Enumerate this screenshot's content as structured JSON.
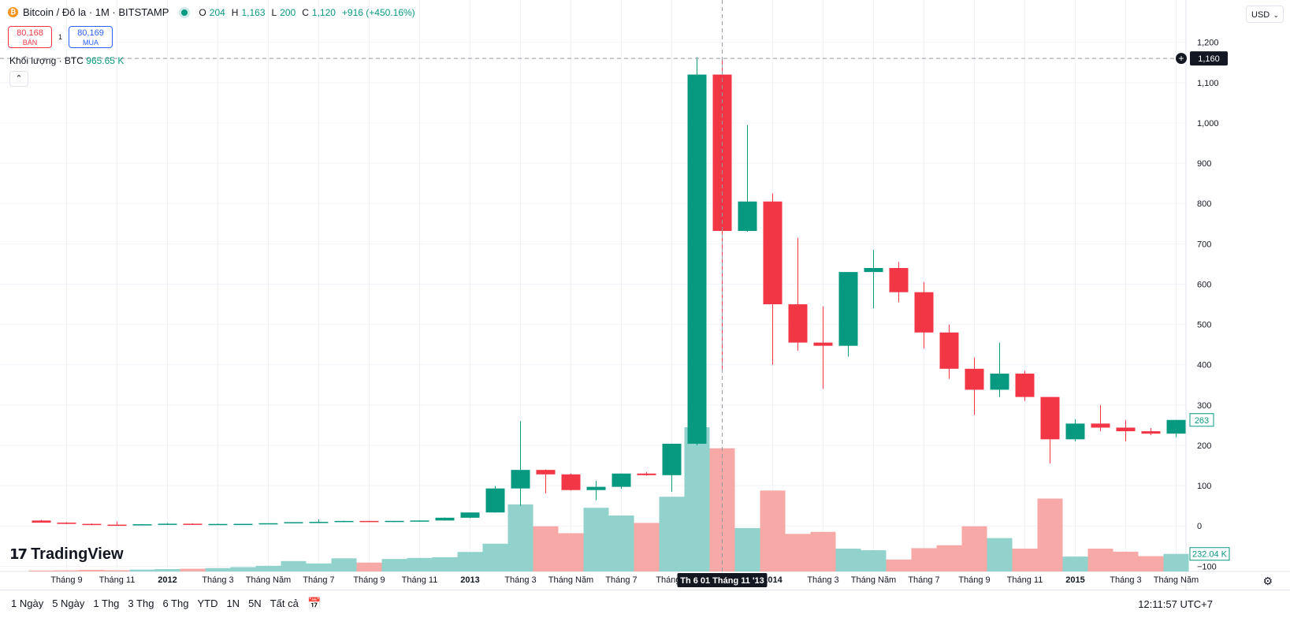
{
  "header": {
    "coin_icon": "bitcoin-icon",
    "symbol": "Bitcoin / Đô la · 1M · BITSTAMP",
    "ohlc": {
      "o_key": "O",
      "o": "204",
      "h_key": "H",
      "h": "1,163",
      "l_key": "L",
      "l": "200",
      "c_key": "C",
      "c": "1,120",
      "change": "+916 (+450.16%)"
    }
  },
  "quote": {
    "sell_price": "80,168",
    "sell_label": "BÁN",
    "spread": "1",
    "buy_price": "80,169",
    "buy_label": "MUA"
  },
  "volume_legend": {
    "label": "Khối lượng · BTC",
    "value": "965.65 K"
  },
  "collapse_icon": "chevron-up-icon",
  "currency": "USD",
  "brand": {
    "logo_text": "TradingView"
  },
  "crosshair": {
    "price_label": "1,160",
    "date_label": "Th 6 01 Tháng 11 '13",
    "price": 1160
  },
  "last_price_label": "263",
  "last_volume_label": "232.04 K",
  "colors": {
    "up": "#089981",
    "down": "#f23645",
    "up_vol": "#92d2cc",
    "down_vol": "#f7a9a7"
  },
  "time_ranges": [
    "1 Ngày",
    "5 Ngày",
    "1 Thg",
    "3 Thg",
    "6 Thg",
    "YTD",
    "1N",
    "5N",
    "Tất cả"
  ],
  "clock": "12:11:57 UTC+7",
  "chart_data": {
    "type": "candlestick",
    "y_ticks": [
      "1,200",
      "1,100",
      "1,000",
      "900",
      "800",
      "700",
      "600",
      "500",
      "400",
      "300",
      "200",
      "100",
      "0",
      "−100"
    ],
    "y_tick_values": [
      1200,
      1100,
      1000,
      900,
      800,
      700,
      600,
      500,
      400,
      300,
      200,
      100,
      0,
      -100
    ],
    "ylim": [
      -113,
      1305
    ],
    "x_ticks": [
      {
        "index": 1,
        "label": "Tháng 9",
        "bold": false
      },
      {
        "index": 3,
        "label": "Tháng 11",
        "bold": false
      },
      {
        "index": 5,
        "label": "2012",
        "bold": true
      },
      {
        "index": 7,
        "label": "Tháng 3",
        "bold": false
      },
      {
        "index": 9,
        "label": "Tháng Năm",
        "bold": false
      },
      {
        "index": 11,
        "label": "Tháng 7",
        "bold": false
      },
      {
        "index": 13,
        "label": "Tháng 9",
        "bold": false
      },
      {
        "index": 15,
        "label": "Tháng 11",
        "bold": false
      },
      {
        "index": 17,
        "label": "2013",
        "bold": true
      },
      {
        "index": 19,
        "label": "Tháng 3",
        "bold": false
      },
      {
        "index": 21,
        "label": "Tháng Năm",
        "bold": false
      },
      {
        "index": 23,
        "label": "Tháng 7",
        "bold": false
      },
      {
        "index": 25,
        "label": "Tháng 9",
        "bold": false
      },
      {
        "index": 29,
        "label": "2014",
        "bold": true
      },
      {
        "index": 31,
        "label": "Tháng 3",
        "bold": false
      },
      {
        "index": 33,
        "label": "Tháng Năm",
        "bold": false
      },
      {
        "index": 35,
        "label": "Tháng 7",
        "bold": false
      },
      {
        "index": 37,
        "label": "Tháng 9",
        "bold": false
      },
      {
        "index": 39,
        "label": "Tháng 11",
        "bold": false
      },
      {
        "index": 41,
        "label": "2015",
        "bold": true
      },
      {
        "index": 43,
        "label": "Tháng 3",
        "bold": false
      },
      {
        "index": 45,
        "label": "Tháng Năm",
        "bold": false
      }
    ],
    "crosshair_index": 27,
    "candles": [
      {
        "o": 13.4,
        "h": 15,
        "l": 10,
        "c": 8.2
      },
      {
        "o": 8.2,
        "h": 9.5,
        "l": 4.5,
        "c": 5.1
      },
      {
        "o": 5.1,
        "h": 6,
        "l": 2,
        "c": 3.2
      },
      {
        "o": 3.2,
        "h": 11,
        "l": 2,
        "c": 2.9
      },
      {
        "o": 2.9,
        "h": 4.5,
        "l": 2.5,
        "c": 4.2
      },
      {
        "o": 4.2,
        "h": 7.2,
        "l": 4,
        "c": 5.5
      },
      {
        "o": 5.5,
        "h": 6.5,
        "l": 4.2,
        "c": 4.9
      },
      {
        "o": 4.9,
        "h": 5.9,
        "l": 4.4,
        "c": 4.9
      },
      {
        "o": 4.9,
        "h": 5.3,
        "l": 4.7,
        "c": 5.2
      },
      {
        "o": 5.2,
        "h": 5.8,
        "l": 5,
        "c": 6.7
      },
      {
        "o": 6.7,
        "h": 7.5,
        "l": 6.5,
        "c": 9.4
      },
      {
        "o": 9.4,
        "h": 16,
        "l": 7,
        "c": 10.1
      },
      {
        "o": 10.1,
        "h": 13,
        "l": 9.5,
        "c": 12.4
      },
      {
        "o": 12.4,
        "h": 12.8,
        "l": 9.8,
        "c": 11.2
      },
      {
        "o": 11.2,
        "h": 12,
        "l": 9.6,
        "c": 12.6
      },
      {
        "o": 12.6,
        "h": 14,
        "l": 12.5,
        "c": 13.5
      },
      {
        "o": 13.5,
        "h": 21,
        "l": 13.3,
        "c": 20.4
      },
      {
        "o": 20.4,
        "h": 33,
        "l": 19,
        "c": 33.4
      },
      {
        "o": 33.4,
        "h": 99,
        "l": 33,
        "c": 93
      },
      {
        "o": 93,
        "h": 260,
        "l": 50,
        "c": 139
      },
      {
        "o": 139,
        "h": 140,
        "l": 81,
        "c": 128
      },
      {
        "o": 128,
        "h": 130,
        "l": 88,
        "c": 89
      },
      {
        "o": 89,
        "h": 112,
        "l": 64,
        "c": 97
      },
      {
        "o": 97,
        "h": 130,
        "l": 92,
        "c": 130
      },
      {
        "o": 130,
        "h": 134,
        "l": 125,
        "c": 126
      },
      {
        "o": 126,
        "h": 204,
        "l": 85,
        "c": 204
      },
      {
        "o": 204,
        "h": 1163,
        "l": 200,
        "c": 1120
      },
      {
        "o": 1120,
        "h": 1163,
        "l": 380,
        "c": 732
      },
      {
        "o": 732,
        "h": 995,
        "l": 730,
        "c": 805
      },
      {
        "o": 805,
        "h": 825,
        "l": 400,
        "c": 550
      },
      {
        "o": 550,
        "h": 715,
        "l": 435,
        "c": 455
      },
      {
        "o": 455,
        "h": 545,
        "l": 340,
        "c": 447
      },
      {
        "o": 447,
        "h": 630,
        "l": 420,
        "c": 630
      },
      {
        "o": 630,
        "h": 685,
        "l": 540,
        "c": 640
      },
      {
        "o": 640,
        "h": 655,
        "l": 555,
        "c": 580
      },
      {
        "o": 580,
        "h": 605,
        "l": 440,
        "c": 480
      },
      {
        "o": 480,
        "h": 500,
        "l": 365,
        "c": 390
      },
      {
        "o": 390,
        "h": 418,
        "l": 275,
        "c": 338
      },
      {
        "o": 338,
        "h": 455,
        "l": 320,
        "c": 378
      },
      {
        "o": 378,
        "h": 385,
        "l": 310,
        "c": 320
      },
      {
        "o": 320,
        "h": 320,
        "l": 155,
        "c": 215
      },
      {
        "o": 215,
        "h": 265,
        "l": 210,
        "c": 254
      },
      {
        "o": 254,
        "h": 300,
        "l": 235,
        "c": 244
      },
      {
        "o": 244,
        "h": 263,
        "l": 210,
        "c": 235
      },
      {
        "o": 235,
        "h": 243,
        "l": 225,
        "c": 229
      },
      {
        "o": 229,
        "h": 263,
        "l": 220,
        "c": 263
      }
    ],
    "volume": [
      1.2,
      1.5,
      2.1,
      1.6,
      2.4,
      3.0,
      3.5,
      4.3,
      5.5,
      7.2,
      13.2,
      10.2,
      16.7,
      11.3,
      15.9,
      17.2,
      18.1,
      24.8,
      35.3,
      85.2,
      57.4,
      48.6,
      80.9,
      71.1,
      61.7,
      94.9,
      183.2,
      156.5,
      55.2,
      102.8,
      47.7,
      50.3,
      29.0,
      27.0,
      15.2,
      29.6,
      33.3,
      57.4,
      42.4,
      29.0,
      92.6,
      18.9,
      29.0,
      25.2,
      19.5,
      22.3
    ]
  }
}
